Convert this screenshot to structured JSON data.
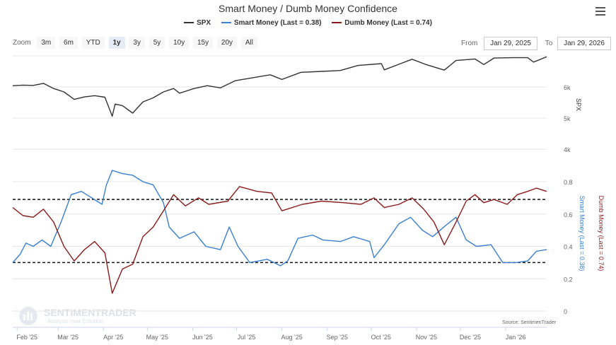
{
  "title": "Smart Money / Dumb Money Confidence",
  "legend": [
    {
      "name": "SPX",
      "color": "#333333"
    },
    {
      "name": "Smart Money (Last = 0.38)",
      "color": "#3a7fcf"
    },
    {
      "name": "Dumb Money (Last = 0.74)",
      "color": "#8b1a1a"
    }
  ],
  "zoom": {
    "label": "Zoom",
    "buttons": [
      "3m",
      "6m",
      "YTD",
      "1y",
      "3y",
      "5y",
      "10y",
      "15y",
      "20y",
      "All"
    ],
    "active": "1y"
  },
  "range": {
    "from_label": "From",
    "from_value": "Jan 29, 2025",
    "to_label": "To",
    "to_value": "Jan 29, 2026"
  },
  "credit": "Source: SentimenTrader",
  "watermark": {
    "name": "SENTIMENTRADER",
    "tagline": "Analysis over Emotion"
  },
  "chart_data": {
    "type": "line",
    "x_ticks": [
      "Feb '25",
      "Mar '25",
      "Apr '25",
      "May '25",
      "Jun '25",
      "Jul '25",
      "Aug '25",
      "Sep '25",
      "Oct '25",
      "Nov '25",
      "Dec '25",
      "Jan '26"
    ],
    "upper_axis": {
      "label": "SPX",
      "ticks": [
        "4k",
        "5k",
        "6k"
      ],
      "range": [
        3500,
        7000
      ]
    },
    "lower_axis": {
      "left_label": "Smart Money (Last = 0.38)",
      "right_label": "Dumb Money (Last = 0.74)",
      "ticks": [
        "0",
        "0.2",
        "0.4",
        "0.6",
        "0.8"
      ],
      "range": [
        0,
        0.9
      ]
    },
    "reference_lines": [
      0.69,
      0.3
    ],
    "series": [
      {
        "name": "SPX",
        "points": [
          [
            "2025-01-29",
            6040
          ],
          [
            "2025-02-05",
            6060
          ],
          [
            "2025-02-12",
            6050
          ],
          [
            "2025-02-19",
            6115
          ],
          [
            "2025-02-26",
            5950
          ],
          [
            "2025-03-05",
            5840
          ],
          [
            "2025-03-12",
            5600
          ],
          [
            "2025-03-19",
            5680
          ],
          [
            "2025-03-26",
            5720
          ],
          [
            "2025-04-02",
            5670
          ],
          [
            "2025-04-07",
            5060
          ],
          [
            "2025-04-09",
            5450
          ],
          [
            "2025-04-14",
            5400
          ],
          [
            "2025-04-21",
            5160
          ],
          [
            "2025-04-28",
            5520
          ],
          [
            "2025-05-05",
            5650
          ],
          [
            "2025-05-12",
            5840
          ],
          [
            "2025-05-19",
            5950
          ],
          [
            "2025-05-23",
            5800
          ],
          [
            "2025-06-02",
            5950
          ],
          [
            "2025-06-11",
            6040
          ],
          [
            "2025-06-20",
            5970
          ],
          [
            "2025-06-30",
            6200
          ],
          [
            "2025-07-10",
            6280
          ],
          [
            "2025-07-24",
            6390
          ],
          [
            "2025-08-01",
            6240
          ],
          [
            "2025-08-14",
            6470
          ],
          [
            "2025-08-28",
            6500
          ],
          [
            "2025-09-10",
            6530
          ],
          [
            "2025-09-22",
            6690
          ],
          [
            "2025-10-08",
            6750
          ],
          [
            "2025-10-10",
            6550
          ],
          [
            "2025-10-20",
            6730
          ],
          [
            "2025-10-29",
            6890
          ],
          [
            "2025-11-07",
            6730
          ],
          [
            "2025-11-20",
            6540
          ],
          [
            "2025-11-28",
            6850
          ],
          [
            "2025-12-11",
            6900
          ],
          [
            "2025-12-17",
            6720
          ],
          [
            "2025-12-24",
            6930
          ],
          [
            "2026-01-06",
            6940
          ],
          [
            "2026-01-16",
            6940
          ],
          [
            "2026-01-20",
            6800
          ],
          [
            "2026-01-29",
            6970
          ]
        ]
      },
      {
        "name": "Smart Money",
        "points": [
          [
            "2025-01-29",
            0.3
          ],
          [
            "2025-02-03",
            0.35
          ],
          [
            "2025-02-07",
            0.42
          ],
          [
            "2025-02-12",
            0.4
          ],
          [
            "2025-02-18",
            0.44
          ],
          [
            "2025-02-24",
            0.4
          ],
          [
            "2025-03-03",
            0.55
          ],
          [
            "2025-03-10",
            0.72
          ],
          [
            "2025-03-17",
            0.74
          ],
          [
            "2025-03-24",
            0.7
          ],
          [
            "2025-03-31",
            0.66
          ],
          [
            "2025-04-03",
            0.78
          ],
          [
            "2025-04-07",
            0.87
          ],
          [
            "2025-04-14",
            0.85
          ],
          [
            "2025-04-21",
            0.84
          ],
          [
            "2025-04-28",
            0.8
          ],
          [
            "2025-05-05",
            0.78
          ],
          [
            "2025-05-12",
            0.67
          ],
          [
            "2025-05-16",
            0.52
          ],
          [
            "2025-05-23",
            0.45
          ],
          [
            "2025-06-02",
            0.49
          ],
          [
            "2025-06-10",
            0.4
          ],
          [
            "2025-06-20",
            0.38
          ],
          [
            "2025-06-26",
            0.52
          ],
          [
            "2025-07-02",
            0.4
          ],
          [
            "2025-07-10",
            0.3
          ],
          [
            "2025-07-22",
            0.32
          ],
          [
            "2025-07-31",
            0.28
          ],
          [
            "2025-08-05",
            0.31
          ],
          [
            "2025-08-12",
            0.45
          ],
          [
            "2025-08-22",
            0.47
          ],
          [
            "2025-08-29",
            0.44
          ],
          [
            "2025-09-10",
            0.43
          ],
          [
            "2025-09-19",
            0.46
          ],
          [
            "2025-09-30",
            0.43
          ],
          [
            "2025-10-03",
            0.33
          ],
          [
            "2025-10-10",
            0.41
          ],
          [
            "2025-10-20",
            0.54
          ],
          [
            "2025-10-28",
            0.58
          ],
          [
            "2025-11-05",
            0.5
          ],
          [
            "2025-11-12",
            0.46
          ],
          [
            "2025-11-21",
            0.53
          ],
          [
            "2025-11-28",
            0.58
          ],
          [
            "2025-12-05",
            0.44
          ],
          [
            "2025-12-12",
            0.4
          ],
          [
            "2025-12-22",
            0.41
          ],
          [
            "2025-12-30",
            0.3
          ],
          [
            "2026-01-08",
            0.3
          ],
          [
            "2026-01-16",
            0.31
          ],
          [
            "2026-01-22",
            0.37
          ],
          [
            "2026-01-29",
            0.38
          ]
        ]
      },
      {
        "name": "Dumb Money",
        "points": [
          [
            "2025-01-29",
            0.64
          ],
          [
            "2025-02-05",
            0.59
          ],
          [
            "2025-02-12",
            0.58
          ],
          [
            "2025-02-19",
            0.63
          ],
          [
            "2025-02-26",
            0.55
          ],
          [
            "2025-03-05",
            0.4
          ],
          [
            "2025-03-12",
            0.31
          ],
          [
            "2025-03-19",
            0.38
          ],
          [
            "2025-03-26",
            0.43
          ],
          [
            "2025-04-02",
            0.36
          ],
          [
            "2025-04-07",
            0.11
          ],
          [
            "2025-04-14",
            0.26
          ],
          [
            "2025-04-21",
            0.29
          ],
          [
            "2025-04-28",
            0.46
          ],
          [
            "2025-05-05",
            0.52
          ],
          [
            "2025-05-12",
            0.62
          ],
          [
            "2025-05-19",
            0.72
          ],
          [
            "2025-05-27",
            0.65
          ],
          [
            "2025-06-05",
            0.7
          ],
          [
            "2025-06-12",
            0.66
          ],
          [
            "2025-06-25",
            0.68
          ],
          [
            "2025-07-03",
            0.77
          ],
          [
            "2025-07-15",
            0.74
          ],
          [
            "2025-07-25",
            0.73
          ],
          [
            "2025-08-01",
            0.62
          ],
          [
            "2025-08-15",
            0.66
          ],
          [
            "2025-08-28",
            0.68
          ],
          [
            "2025-09-12",
            0.67
          ],
          [
            "2025-09-24",
            0.66
          ],
          [
            "2025-10-03",
            0.7
          ],
          [
            "2025-10-10",
            0.64
          ],
          [
            "2025-10-20",
            0.66
          ],
          [
            "2025-10-29",
            0.7
          ],
          [
            "2025-11-06",
            0.63
          ],
          [
            "2025-11-13",
            0.55
          ],
          [
            "2025-11-20",
            0.41
          ],
          [
            "2025-11-28",
            0.55
          ],
          [
            "2025-12-05",
            0.68
          ],
          [
            "2025-12-11",
            0.72
          ],
          [
            "2025-12-17",
            0.67
          ],
          [
            "2025-12-24",
            0.69
          ],
          [
            "2026-01-02",
            0.66
          ],
          [
            "2026-01-09",
            0.72
          ],
          [
            "2026-01-16",
            0.74
          ],
          [
            "2026-01-22",
            0.76
          ],
          [
            "2026-01-29",
            0.74
          ]
        ]
      }
    ]
  }
}
